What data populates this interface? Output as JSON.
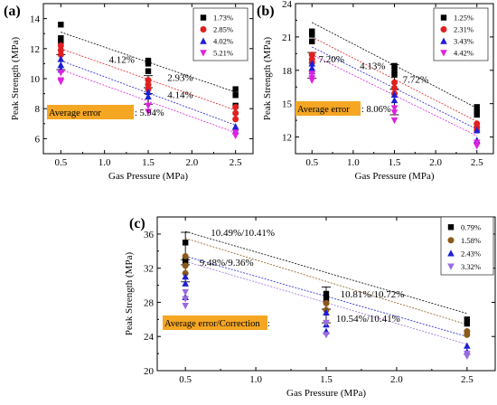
{
  "chart_data": [
    {
      "panel": "(a)",
      "type": "scatter",
      "xlabel": "Gas Pressure (MPa)",
      "ylabel": "Peak Strength (MPa)",
      "xlim": [
        0.3,
        2.7
      ],
      "ylim": [
        5,
        15
      ],
      "xticks": [
        0.5,
        1.0,
        1.5,
        2.0,
        2.5
      ],
      "xtick_labels": [
        "0.5",
        "1.0",
        "1.5",
        "2.0",
        "2.5"
      ],
      "yticks": [
        6,
        8,
        10,
        12,
        14
      ],
      "ytick_labels": [
        "6",
        "8",
        "10",
        "12",
        "14"
      ],
      "series": [
        {
          "name": "1.73%",
          "color": "#000000",
          "marker": "square",
          "points": [
            [
              0.5,
              13.6
            ],
            [
              0.5,
              12.7
            ],
            [
              0.5,
              12.5
            ],
            [
              1.5,
              11.2
            ],
            [
              1.5,
              11.0
            ],
            [
              1.5,
              10.5
            ],
            [
              2.5,
              9.3
            ],
            [
              2.5,
              8.9
            ],
            [
              2.5,
              8.2
            ]
          ],
          "fit": [
            [
              0.5,
              13.1
            ],
            [
              2.5,
              9.1
            ]
          ]
        },
        {
          "name": "2.85%",
          "color": "#e02020",
          "marker": "circle",
          "points": [
            [
              0.5,
              12.2
            ],
            [
              0.5,
              11.9
            ],
            [
              0.5,
              11.6
            ],
            [
              1.5,
              9.9
            ],
            [
              1.5,
              9.6
            ],
            [
              1.5,
              9.3
            ],
            [
              2.5,
              8.1
            ],
            [
              2.5,
              7.7
            ],
            [
              2.5,
              7.3
            ]
          ],
          "fit": [
            [
              0.5,
              12.0
            ],
            [
              2.5,
              7.9
            ]
          ]
        },
        {
          "name": "4.02%",
          "color": "#1e1ed6",
          "marker": "triangle-up",
          "points": [
            [
              0.5,
              11.3
            ],
            [
              0.5,
              10.9
            ],
            [
              0.5,
              10.6
            ],
            [
              1.5,
              9.1
            ],
            [
              1.5,
              8.8
            ],
            [
              2.5,
              6.8
            ],
            [
              2.5,
              6.5
            ]
          ],
          "fit": [
            [
              0.5,
              11.2
            ],
            [
              2.5,
              6.9
            ]
          ]
        },
        {
          "name": "5.21%",
          "color": "#e020e0",
          "marker": "triangle-down",
          "points": [
            [
              0.5,
              10.4
            ],
            [
              0.5,
              9.9
            ],
            [
              0.5,
              9.8
            ],
            [
              1.5,
              8.2
            ],
            [
              1.5,
              7.8
            ],
            [
              2.5,
              6.4
            ],
            [
              2.5,
              6.2
            ]
          ],
          "fit": [
            [
              0.5,
              10.6
            ],
            [
              2.5,
              6.4
            ]
          ]
        }
      ],
      "error_bars": [
        {
          "x": 0.5,
          "low": 10.6,
          "high": 11.6
        },
        {
          "x": 1.5,
          "low": 9.4,
          "high": 10.2
        },
        {
          "x": 1.5,
          "low": 8.3,
          "high": 9.0
        }
      ],
      "annotations": [
        {
          "text": "4.12%",
          "x": 1.05,
          "y": 11.05
        },
        {
          "text": "2.93%",
          "x": 1.72,
          "y": 9.85
        },
        {
          "text": "4.14%",
          "x": 1.72,
          "y": 8.7
        }
      ],
      "error_label": {
        "box": "Average error",
        "value": ": 5.94%"
      }
    },
    {
      "panel": "(b)",
      "type": "scatter",
      "xlabel": "Gas Pressure (MPa)",
      "ylabel": "Peak Strength (MPa)",
      "xlim": [
        0.3,
        2.7
      ],
      "ylim": [
        10.5,
        24
      ],
      "xticks": [
        0.5,
        1.0,
        1.5,
        2.0,
        2.5
      ],
      "xtick_labels": [
        "0.5",
        "1.0",
        "1.5",
        "2.0",
        "2.5"
      ],
      "yticks": [
        12,
        15,
        18,
        21,
        24
      ],
      "ytick_labels": [
        "12",
        "15",
        "18",
        "21",
        "24"
      ],
      "series": [
        {
          "name": "1.25%",
          "color": "#000000",
          "marker": "square",
          "points": [
            [
              0.5,
              21.5
            ],
            [
              0.5,
              21.2
            ],
            [
              0.5,
              20.6
            ],
            [
              1.5,
              18.4
            ],
            [
              1.5,
              18.0
            ],
            [
              1.5,
              17.6
            ],
            [
              2.5,
              14.7
            ],
            [
              2.5,
              14.3
            ],
            [
              2.5,
              14.0
            ]
          ],
          "fit": [
            [
              0.5,
              22.3
            ],
            [
              2.5,
              14.6
            ]
          ]
        },
        {
          "name": "2.31%",
          "color": "#e02020",
          "marker": "circle",
          "points": [
            [
              0.5,
              19.4
            ],
            [
              0.5,
              19.0
            ],
            [
              0.5,
              18.7
            ],
            [
              1.5,
              16.9
            ],
            [
              1.5,
              16.4
            ],
            [
              1.5,
              15.9
            ],
            [
              2.5,
              13.2
            ],
            [
              2.5,
              12.9
            ],
            [
              2.5,
              12.6
            ]
          ],
          "fit": [
            [
              0.5,
              21.0
            ],
            [
              2.5,
              13.4
            ]
          ]
        },
        {
          "name": "3.43%",
          "color": "#1e1ed6",
          "marker": "triangle-up",
          "points": [
            [
              0.5,
              18.6
            ],
            [
              0.5,
              18.2
            ],
            [
              0.5,
              17.9
            ],
            [
              1.5,
              15.8
            ],
            [
              1.5,
              15.3
            ],
            [
              2.5,
              12.6
            ],
            [
              2.5,
              11.7
            ]
          ],
          "fit": [
            [
              0.5,
              20.1
            ],
            [
              2.5,
              12.7
            ]
          ]
        },
        {
          "name": "4.42%",
          "color": "#e020e0",
          "marker": "triangle-down",
          "points": [
            [
              0.5,
              17.7
            ],
            [
              0.5,
              17.3
            ],
            [
              0.5,
              17.1
            ],
            [
              1.5,
              14.6
            ],
            [
              1.5,
              14.2
            ],
            [
              1.5,
              13.5
            ],
            [
              2.5,
              11.5
            ],
            [
              2.5,
              11.2
            ]
          ],
          "fit": [
            [
              0.5,
              19.4
            ],
            [
              2.5,
              12.1
            ]
          ]
        }
      ],
      "error_bars": [
        {
          "x": 0.5,
          "low": 17.3,
          "high": 19.6
        },
        {
          "x": 1.5,
          "low": 16.3,
          "high": 18.5
        },
        {
          "x": 1.5,
          "low": 14.0,
          "high": 16.3
        }
      ],
      "annotations": [
        {
          "text": "7.20%",
          "x": 0.58,
          "y": 18.7
        },
        {
          "text": "4.13%",
          "x": 1.08,
          "y": 18.1
        },
        {
          "text": "7.72%",
          "x": 1.6,
          "y": 16.9
        }
      ],
      "error_label": {
        "box": "Average error",
        "value": ": 8.06%"
      }
    },
    {
      "panel": "(c)",
      "type": "scatter",
      "xlabel": "Gas Pressure (MPa)",
      "ylabel": "Peak Strength (MPa)",
      "xlim": [
        0.3,
        2.7
      ],
      "ylim": [
        20,
        38
      ],
      "xticks": [
        0.5,
        1.0,
        1.5,
        2.0,
        2.5
      ],
      "xtick_labels": [
        "0.5",
        "1.0",
        "1.5",
        "2.0",
        "2.5"
      ],
      "yticks": [
        20,
        24,
        28,
        32,
        36
      ],
      "ytick_labels": [
        "20",
        "24",
        "28",
        "32",
        "36"
      ],
      "series": [
        {
          "name": "0.79%",
          "color": "#000000",
          "marker": "square",
          "points": [
            [
              0.5,
              35.0
            ],
            [
              0.5,
              33.2
            ],
            [
              0.5,
              32.6
            ],
            [
              1.5,
              29.0
            ],
            [
              1.5,
              28.4
            ],
            [
              2.5,
              26.0
            ],
            [
              2.5,
              25.5
            ]
          ],
          "fit": [
            [
              0.5,
              36.3
            ],
            [
              2.5,
              26.7
            ]
          ]
        },
        {
          "name": "1.58%",
          "color": "#8b5a1a",
          "marker": "circle",
          "points": [
            [
              0.5,
              33.4
            ],
            [
              0.5,
              32.3
            ],
            [
              0.5,
              31.4
            ],
            [
              1.5,
              27.9
            ],
            [
              1.5,
              27.1
            ],
            [
              2.5,
              24.6
            ],
            [
              2.5,
              24.2
            ]
          ],
          "fit": [
            [
              0.5,
              35.5
            ],
            [
              2.5,
              25.4
            ]
          ]
        },
        {
          "name": "2.43%",
          "color": "#1e1ed6",
          "marker": "triangle-up",
          "points": [
            [
              0.5,
              31.0
            ],
            [
              0.5,
              30.2
            ],
            [
              0.5,
              28.6
            ],
            [
              1.5,
              26.8
            ],
            [
              1.5,
              25.4
            ],
            [
              1.5,
              24.6
            ],
            [
              2.5,
              22.9
            ],
            [
              2.5,
              22.2
            ]
          ],
          "fit": [
            [
              0.5,
              33.4
            ],
            [
              2.5,
              24.0
            ]
          ]
        },
        {
          "name": "3.32%",
          "color": "#9b6be0",
          "marker": "triangle-down",
          "points": [
            [
              0.5,
              29.2
            ],
            [
              0.5,
              28.4
            ],
            [
              0.5,
              27.6
            ],
            [
              1.5,
              25.6
            ],
            [
              1.5,
              24.2
            ],
            [
              2.5,
              22.0
            ],
            [
              2.5,
              21.7
            ]
          ],
          "fit": [
            [
              0.5,
              32.8
            ],
            [
              2.5,
              23.1
            ]
          ]
        }
      ],
      "error_bars": [
        {
          "x": 0.5,
          "low": 33.0,
          "high": 36.2
        },
        {
          "x": 0.5,
          "low": 30.4,
          "high": 32.4
        },
        {
          "x": 1.5,
          "low": 27.2,
          "high": 29.8
        },
        {
          "x": 1.5,
          "low": 25.6,
          "high": 27.2
        }
      ],
      "annotations": [
        {
          "text": "10.49%/10.41%",
          "x": 0.68,
          "y": 35.8
        },
        {
          "text": "9.48%/9.36%",
          "x": 0.6,
          "y": 32.3
        },
        {
          "text": "10.81%/10.72%",
          "x": 1.6,
          "y": 28.6
        },
        {
          "text": "10.54%/10.41%",
          "x": 1.57,
          "y": 25.7
        }
      ],
      "error_label": {
        "box": "Average error/Correction",
        "value": ":"
      }
    }
  ]
}
